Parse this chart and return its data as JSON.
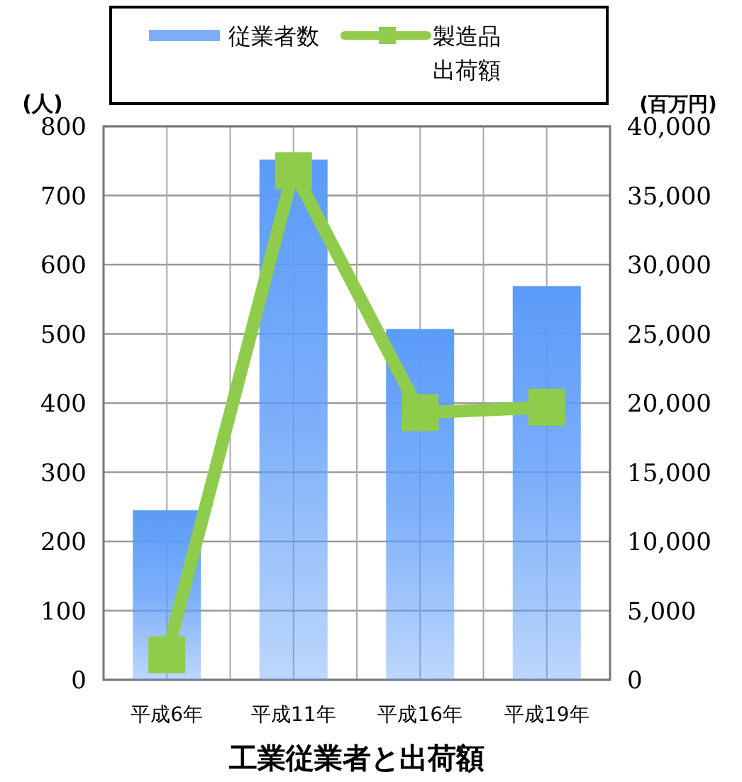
{
  "chart_data": {
    "type": "bar",
    "title": "工業従業者と出荷額",
    "ylabel": "(人)",
    "y2label": "(百万円)",
    "categories": [
      "平成6年",
      "平成11年",
      "平成16年",
      "平成19年"
    ],
    "series": [
      {
        "name": "従業者数",
        "color": "#5b9bf8",
        "values": [
          245,
          752,
          507,
          569
        ]
      },
      {
        "name": "製造品出荷額",
        "type": "line",
        "axis": "y2",
        "color": "#8fcc4c",
        "marker": "square",
        "values": [
          1800,
          36800,
          19300,
          19700
        ]
      }
    ],
    "ylim": [
      0,
      800
    ],
    "yticks": [
      0,
      100,
      200,
      300,
      400,
      500,
      600,
      700,
      800
    ],
    "y2lim": [
      0,
      40000
    ],
    "y2ticks": [
      {
        "value": 0,
        "label": "0"
      },
      {
        "value": 5000,
        "label": "5,000"
      },
      {
        "value": 10000,
        "label": "10,000"
      },
      {
        "value": 15000,
        "label": "15,000"
      },
      {
        "value": 20000,
        "label": "20,000"
      },
      {
        "value": 25000,
        "label": "25,000"
      },
      {
        "value": 30000,
        "label": "30,000"
      },
      {
        "value": 35000,
        "label": "35,000"
      },
      {
        "value": 40000,
        "label": "40,000"
      }
    ],
    "grid": true,
    "legend": "top"
  }
}
